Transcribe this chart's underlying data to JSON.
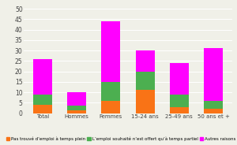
{
  "categories": [
    "Total",
    "Hommes",
    "Femmes",
    "15-24 ans",
    "25-49 ans",
    "50 ans et +"
  ],
  "series": {
    "Pas trouvé d’emploi à temps plein": [
      4,
      1.5,
      6,
      11,
      3,
      2
    ],
    "L’emploi souhaité n’est offert qu’à temps partiel": [
      5,
      2,
      9,
      9,
      6,
      4
    ],
    "Autres raisons": [
      17,
      6.5,
      29,
      10,
      15,
      25
    ]
  },
  "colors": {
    "Pas trouvé d’emploi à temps plein": "#F97316",
    "L’emploi souhaité n’est offert qu’à temps partiel": "#4CAF50",
    "Autres raisons": "#FF00FF"
  },
  "ylim": [
    0,
    50
  ],
  "yticks": [
    0,
    5,
    10,
    15,
    20,
    25,
    30,
    35,
    40,
    45,
    50
  ],
  "bar_width": 0.55,
  "background_color": "#f0f0e8"
}
